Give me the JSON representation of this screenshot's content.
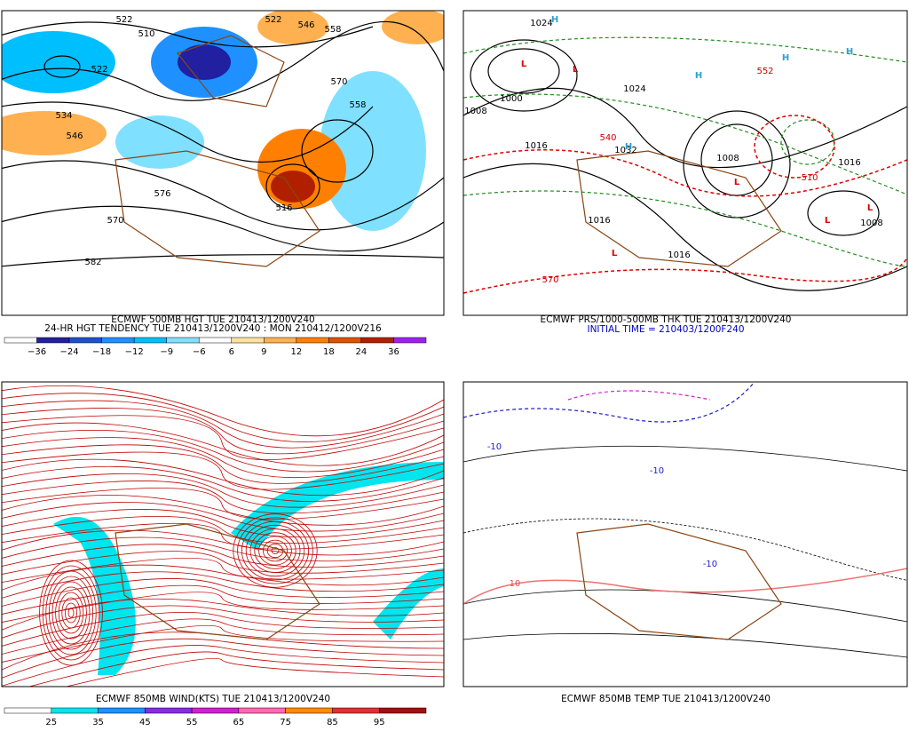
{
  "panels": [
    {
      "captions": [
        "ECMWF 500MB HGT TUE 210413/1200V240",
        "24-HR HGT TENDENCY TUE 210413/1200V240 : MON 210412/1200V216"
      ],
      "contour_labels": [
        "522",
        "510",
        "522",
        "534",
        "546",
        "522",
        "546",
        "558",
        "570",
        "558",
        "570",
        "582",
        "576",
        "516"
      ],
      "colorbar": {
        "labels": [
          "−36",
          "−24",
          "−18",
          "−12",
          "−9",
          "−6",
          "6",
          "9",
          "12",
          "18",
          "24",
          "36"
        ],
        "colors": [
          "#ffffff",
          "#2020a0",
          "#1e50d0",
          "#1e90ff",
          "#00bfff",
          "#80e0ff",
          "#ffffff",
          "#ffe0a0",
          "#ffb050",
          "#ff8000",
          "#e05000",
          "#b02000",
          "#a020f0"
        ]
      }
    },
    {
      "captions": [
        "ECMWF PRS/1000-500MB THK TUE 210413/1200V240",
        "INITIAL TIME = 210403/1200F240"
      ],
      "contour_labels": [
        "1024",
        "1000",
        "1008",
        "1016",
        "1032",
        "1024",
        "1016",
        "1008",
        "1016",
        "1008",
        "1016",
        "570",
        "540",
        "510",
        "552"
      ],
      "centers": [
        "H",
        "L",
        "L",
        "H",
        "H",
        "H",
        "H",
        "L",
        "L",
        "L",
        "L"
      ]
    },
    {
      "captions": [
        "ECMWF 850MB WIND(KTS) TUE 210413/1200V240"
      ],
      "colorbar": {
        "labels": [
          "25",
          "35",
          "45",
          "55",
          "65",
          "75",
          "85",
          "95"
        ],
        "colors": [
          "#ffffff",
          "#00e5ee",
          "#1e90ff",
          "#8a2be2",
          "#d020d0",
          "#ff69b4",
          "#ff8c00",
          "#e03030",
          "#a01010"
        ]
      }
    },
    {
      "captions": [
        "ECMWF 850MB TEMP TUE 210413/1200V240"
      ],
      "contour_labels": [
        "-10",
        "-10",
        "-10",
        "10"
      ]
    }
  ]
}
